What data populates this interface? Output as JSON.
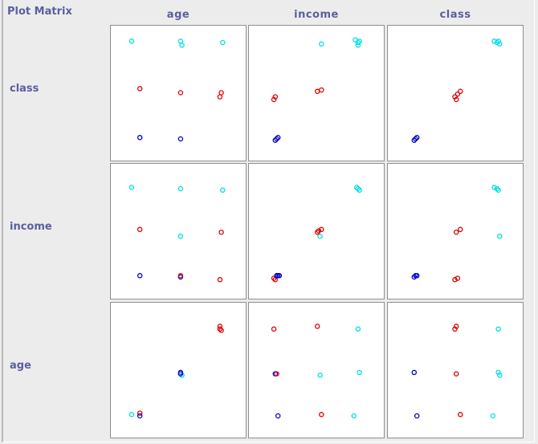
{
  "title": "Plot Matrix",
  "attributes": [
    "age",
    "income",
    "class"
  ],
  "colors": {
    "class_0": "#0000cc",
    "class_1": "#dd0000",
    "class_2": "#00e0e0",
    "panel_bg": "#ffffff",
    "panel_border": "#8f8f8f",
    "label_color": "#5b5f9e"
  },
  "chart_data": {
    "type": "scatter",
    "title": "Plot Matrix",
    "columns": [
      "age",
      "income",
      "class"
    ],
    "rows": [
      "class",
      "income",
      "age"
    ],
    "xlim": [
      0,
      1
    ],
    "ylim": [
      0,
      1
    ],
    "grid": false,
    "legend": "none",
    "series_order": [
      "class_0",
      "class_1",
      "class_2"
    ],
    "panels": [
      {
        "row": "class",
        "col": "age",
        "points": [
          {
            "x": 0.16,
            "y": 0.88,
            "c": 2
          },
          {
            "x": 0.52,
            "y": 0.88,
            "c": 2
          },
          {
            "x": 0.53,
            "y": 0.85,
            "c": 2
          },
          {
            "x": 0.83,
            "y": 0.87,
            "c": 2
          },
          {
            "x": 0.22,
            "y": 0.53,
            "c": 1
          },
          {
            "x": 0.52,
            "y": 0.5,
            "c": 1
          },
          {
            "x": 0.82,
            "y": 0.5,
            "c": 1
          },
          {
            "x": 0.81,
            "y": 0.47,
            "c": 1
          },
          {
            "x": 0.22,
            "y": 0.17,
            "c": 0
          },
          {
            "x": 0.52,
            "y": 0.16,
            "c": 0
          }
        ]
      },
      {
        "row": "class",
        "col": "income",
        "points": [
          {
            "x": 0.79,
            "y": 0.89,
            "c": 2
          },
          {
            "x": 0.81,
            "y": 0.87,
            "c": 2
          },
          {
            "x": 0.82,
            "y": 0.88,
            "c": 2
          },
          {
            "x": 0.81,
            "y": 0.85,
            "c": 2
          },
          {
            "x": 0.54,
            "y": 0.86,
            "c": 2
          },
          {
            "x": 0.2,
            "y": 0.47,
            "c": 1
          },
          {
            "x": 0.19,
            "y": 0.45,
            "c": 1
          },
          {
            "x": 0.51,
            "y": 0.51,
            "c": 1
          },
          {
            "x": 0.54,
            "y": 0.52,
            "c": 1
          },
          {
            "x": 0.21,
            "y": 0.16,
            "c": 0
          },
          {
            "x": 0.22,
            "y": 0.17,
            "c": 0
          },
          {
            "x": 0.2,
            "y": 0.15,
            "c": 0
          }
        ]
      },
      {
        "row": "class",
        "col": "class",
        "points": [
          {
            "x": 0.79,
            "y": 0.88,
            "c": 2
          },
          {
            "x": 0.81,
            "y": 0.87,
            "c": 2
          },
          {
            "x": 0.83,
            "y": 0.86,
            "c": 2
          },
          {
            "x": 0.82,
            "y": 0.88,
            "c": 2
          },
          {
            "x": 0.5,
            "y": 0.47,
            "c": 1
          },
          {
            "x": 0.52,
            "y": 0.49,
            "c": 1
          },
          {
            "x": 0.54,
            "y": 0.51,
            "c": 1
          },
          {
            "x": 0.51,
            "y": 0.45,
            "c": 1
          },
          {
            "x": 0.21,
            "y": 0.16,
            "c": 0
          },
          {
            "x": 0.22,
            "y": 0.17,
            "c": 0
          },
          {
            "x": 0.2,
            "y": 0.15,
            "c": 0
          }
        ]
      },
      {
        "row": "income",
        "col": "age",
        "points": [
          {
            "x": 0.16,
            "y": 0.82,
            "c": 2
          },
          {
            "x": 0.52,
            "y": 0.81,
            "c": 2
          },
          {
            "x": 0.83,
            "y": 0.8,
            "c": 2
          },
          {
            "x": 0.52,
            "y": 0.46,
            "c": 2
          },
          {
            "x": 0.22,
            "y": 0.51,
            "c": 1
          },
          {
            "x": 0.82,
            "y": 0.49,
            "c": 1
          },
          {
            "x": 0.81,
            "y": 0.14,
            "c": 1
          },
          {
            "x": 0.22,
            "y": 0.17,
            "c": 0
          },
          {
            "x": 0.52,
            "y": 0.16,
            "c": 0
          },
          {
            "x": 0.52,
            "y": 0.17,
            "c": 1
          }
        ]
      },
      {
        "row": "income",
        "col": "income",
        "points": [
          {
            "x": 0.8,
            "y": 0.82,
            "c": 2
          },
          {
            "x": 0.82,
            "y": 0.8,
            "c": 2
          },
          {
            "x": 0.81,
            "y": 0.81,
            "c": 2
          },
          {
            "x": 0.53,
            "y": 0.46,
            "c": 2
          },
          {
            "x": 0.51,
            "y": 0.49,
            "c": 1
          },
          {
            "x": 0.54,
            "y": 0.51,
            "c": 1
          },
          {
            "x": 0.52,
            "y": 0.5,
            "c": 1
          },
          {
            "x": 0.2,
            "y": 0.14,
            "c": 1
          },
          {
            "x": 0.19,
            "y": 0.15,
            "c": 1
          },
          {
            "x": 0.21,
            "y": 0.17,
            "c": 0
          },
          {
            "x": 0.22,
            "y": 0.17,
            "c": 0
          },
          {
            "x": 0.23,
            "y": 0.17,
            "c": 0
          }
        ]
      },
      {
        "row": "income",
        "col": "class",
        "points": [
          {
            "x": 0.79,
            "y": 0.82,
            "c": 2
          },
          {
            "x": 0.82,
            "y": 0.8,
            "c": 2
          },
          {
            "x": 0.81,
            "y": 0.81,
            "c": 2
          },
          {
            "x": 0.83,
            "y": 0.46,
            "c": 2
          },
          {
            "x": 0.51,
            "y": 0.49,
            "c": 1
          },
          {
            "x": 0.54,
            "y": 0.51,
            "c": 1
          },
          {
            "x": 0.5,
            "y": 0.14,
            "c": 1
          },
          {
            "x": 0.52,
            "y": 0.15,
            "c": 1
          },
          {
            "x": 0.21,
            "y": 0.17,
            "c": 0
          },
          {
            "x": 0.22,
            "y": 0.17,
            "c": 0
          },
          {
            "x": 0.2,
            "y": 0.16,
            "c": 0
          }
        ]
      },
      {
        "row": "age",
        "col": "age",
        "points": [
          {
            "x": 0.81,
            "y": 0.82,
            "c": 1
          },
          {
            "x": 0.82,
            "y": 0.79,
            "c": 1
          },
          {
            "x": 0.81,
            "y": 0.8,
            "c": 1
          },
          {
            "x": 0.52,
            "y": 0.48,
            "c": 0
          },
          {
            "x": 0.53,
            "y": 0.46,
            "c": 2
          },
          {
            "x": 0.52,
            "y": 0.47,
            "c": 0
          },
          {
            "x": 0.16,
            "y": 0.17,
            "c": 2
          },
          {
            "x": 0.22,
            "y": 0.18,
            "c": 1
          },
          {
            "x": 0.22,
            "y": 0.16,
            "c": 0
          }
        ]
      },
      {
        "row": "age",
        "col": "income",
        "points": [
          {
            "x": 0.19,
            "y": 0.8,
            "c": 1
          },
          {
            "x": 0.51,
            "y": 0.82,
            "c": 1
          },
          {
            "x": 0.81,
            "y": 0.8,
            "c": 2
          },
          {
            "x": 0.2,
            "y": 0.47,
            "c": 0
          },
          {
            "x": 0.21,
            "y": 0.47,
            "c": 1
          },
          {
            "x": 0.53,
            "y": 0.46,
            "c": 2
          },
          {
            "x": 0.82,
            "y": 0.48,
            "c": 2
          },
          {
            "x": 0.22,
            "y": 0.16,
            "c": 0
          },
          {
            "x": 0.54,
            "y": 0.17,
            "c": 1
          },
          {
            "x": 0.78,
            "y": 0.16,
            "c": 2
          }
        ]
      },
      {
        "row": "age",
        "col": "class",
        "points": [
          {
            "x": 0.51,
            "y": 0.82,
            "c": 1
          },
          {
            "x": 0.5,
            "y": 0.8,
            "c": 1
          },
          {
            "x": 0.82,
            "y": 0.8,
            "c": 2
          },
          {
            "x": 0.2,
            "y": 0.48,
            "c": 0
          },
          {
            "x": 0.51,
            "y": 0.47,
            "c": 1
          },
          {
            "x": 0.82,
            "y": 0.48,
            "c": 2
          },
          {
            "x": 0.83,
            "y": 0.46,
            "c": 2
          },
          {
            "x": 0.22,
            "y": 0.16,
            "c": 0
          },
          {
            "x": 0.54,
            "y": 0.17,
            "c": 1
          },
          {
            "x": 0.78,
            "y": 0.16,
            "c": 2
          }
        ]
      }
    ]
  }
}
